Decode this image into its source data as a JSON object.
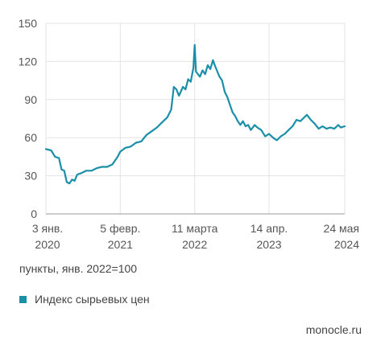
{
  "chart_data": {
    "type": "line",
    "title": "",
    "xlabel": "",
    "ylabel": "",
    "ylim": [
      0,
      150
    ],
    "yticks": [
      0,
      30,
      60,
      90,
      120,
      150
    ],
    "grid": true,
    "legend_position": "bottom-left",
    "x_tick_labels": [
      {
        "date": "2020-01-03",
        "line1": "3 янв.",
        "line2": "2020"
      },
      {
        "date": "2021-02-05",
        "line1": "5 февр.",
        "line2": "2021"
      },
      {
        "date": "2022-03-11",
        "line1": "11 марта",
        "line2": "2022"
      },
      {
        "date": "2023-04-14",
        "line1": "14 апр.",
        "line2": "2023"
      },
      {
        "date": "2024-05-24",
        "line1": "24 мая",
        "line2": "2024"
      }
    ],
    "series": [
      {
        "name": "Индекс сырьевых цен",
        "color": "#1a8fa8",
        "points": [
          [
            "2020-01-03",
            51
          ],
          [
            "2020-01-31",
            50
          ],
          [
            "2020-02-21",
            45
          ],
          [
            "2020-03-13",
            44
          ],
          [
            "2020-03-27",
            35
          ],
          [
            "2020-04-10",
            34
          ],
          [
            "2020-04-24",
            25
          ],
          [
            "2020-05-08",
            24
          ],
          [
            "2020-05-22",
            27
          ],
          [
            "2020-06-05",
            26
          ],
          [
            "2020-06-19",
            31
          ],
          [
            "2020-07-10",
            32
          ],
          [
            "2020-08-07",
            34
          ],
          [
            "2020-09-04",
            34
          ],
          [
            "2020-10-02",
            36
          ],
          [
            "2020-10-30",
            37
          ],
          [
            "2020-11-27",
            37
          ],
          [
            "2020-12-25",
            39
          ],
          [
            "2021-01-22",
            45
          ],
          [
            "2021-02-05",
            49
          ],
          [
            "2021-03-05",
            52
          ],
          [
            "2021-04-02",
            53
          ],
          [
            "2021-04-30",
            56
          ],
          [
            "2021-05-28",
            57
          ],
          [
            "2021-06-25",
            62
          ],
          [
            "2021-07-23",
            65
          ],
          [
            "2021-08-20",
            68
          ],
          [
            "2021-09-17",
            72
          ],
          [
            "2021-10-15",
            76
          ],
          [
            "2021-11-05",
            82
          ],
          [
            "2021-11-19",
            100
          ],
          [
            "2021-12-03",
            98
          ],
          [
            "2021-12-17",
            93
          ],
          [
            "2022-01-07",
            100
          ],
          [
            "2022-01-21",
            98
          ],
          [
            "2022-02-04",
            106
          ],
          [
            "2022-02-18",
            104
          ],
          [
            "2022-03-04",
            115
          ],
          [
            "2022-03-11",
            133
          ],
          [
            "2022-03-18",
            112
          ],
          [
            "2022-04-08",
            108
          ],
          [
            "2022-04-22",
            113
          ],
          [
            "2022-05-06",
            110
          ],
          [
            "2022-05-20",
            117
          ],
          [
            "2022-06-03",
            114
          ],
          [
            "2022-06-17",
            121
          ],
          [
            "2022-06-24",
            118
          ],
          [
            "2022-07-08",
            113
          ],
          [
            "2022-07-22",
            108
          ],
          [
            "2022-08-05",
            105
          ],
          [
            "2022-08-19",
            96
          ],
          [
            "2022-09-02",
            92
          ],
          [
            "2022-09-16",
            86
          ],
          [
            "2022-09-30",
            80
          ],
          [
            "2022-10-14",
            77
          ],
          [
            "2022-10-28",
            73
          ],
          [
            "2022-11-11",
            70
          ],
          [
            "2022-11-25",
            73
          ],
          [
            "2022-12-09",
            69
          ],
          [
            "2022-12-23",
            70
          ],
          [
            "2023-01-06",
            66
          ],
          [
            "2023-01-27",
            70
          ],
          [
            "2023-02-10",
            68
          ],
          [
            "2023-03-03",
            66
          ],
          [
            "2023-03-24",
            61
          ],
          [
            "2023-04-14",
            63
          ],
          [
            "2023-05-05",
            60
          ],
          [
            "2023-05-26",
            58
          ],
          [
            "2023-06-16",
            61
          ],
          [
            "2023-07-07",
            63
          ],
          [
            "2023-07-28",
            66
          ],
          [
            "2023-08-18",
            69
          ],
          [
            "2023-09-08",
            74
          ],
          [
            "2023-09-29",
            73
          ],
          [
            "2023-10-20",
            76
          ],
          [
            "2023-11-03",
            78
          ],
          [
            "2023-11-24",
            74
          ],
          [
            "2023-12-15",
            71
          ],
          [
            "2024-01-05",
            67
          ],
          [
            "2024-01-26",
            69
          ],
          [
            "2024-02-16",
            67
          ],
          [
            "2024-03-08",
            68
          ],
          [
            "2024-03-29",
            67
          ],
          [
            "2024-04-19",
            70
          ],
          [
            "2024-05-03",
            68
          ],
          [
            "2024-05-24",
            69
          ]
        ]
      }
    ]
  },
  "note": "пункты, янв. 2022=100",
  "legend_label": "Индекс сырьевых цен",
  "source": "monocle.ru"
}
